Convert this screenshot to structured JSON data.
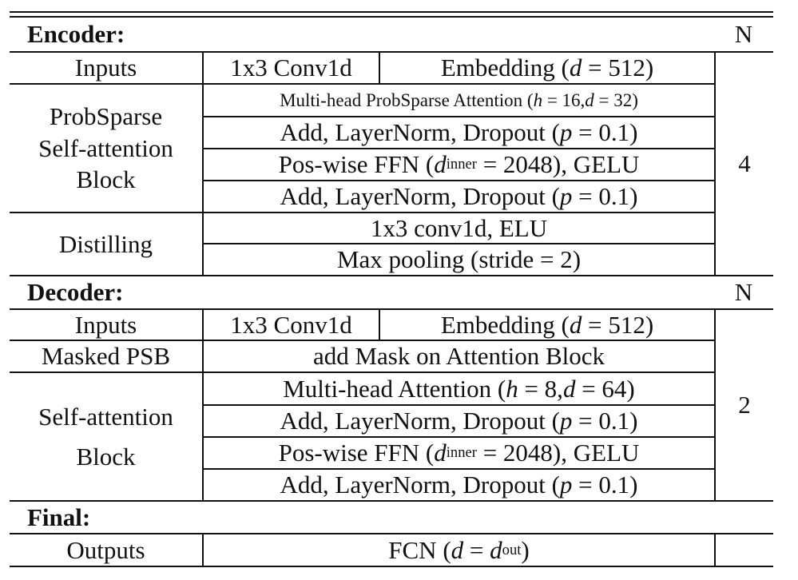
{
  "encoder": {
    "label": "Encoder:",
    "n_header": "N",
    "inputs_label": "Inputs",
    "inputs_conv": "1x3 Conv1d",
    "inputs_embedding": "Embedding (d = 512)",
    "psb_label": [
      "ProbSparse",
      "Self-attention",
      "Block"
    ],
    "psb_rows": [
      "Multi-head ProbSparse Attention (h = 16, d = 32)",
      "Add, LayerNorm, Dropout (p = 0.1)",
      "Pos-wise FFN (d_inner = 2048), GELU",
      "Add, LayerNorm, Dropout (p = 0.1)"
    ],
    "distilling_label": "Distilling",
    "distilling_rows": [
      "1x3 conv1d, ELU",
      "Max pooling (stride = 2)"
    ],
    "n_value": "4"
  },
  "decoder": {
    "label": "Decoder:",
    "n_header": "N",
    "inputs_label": "Inputs",
    "inputs_conv": "1x3 Conv1d",
    "inputs_embedding": "Embedding (d = 512)",
    "masked_label": "Masked PSB",
    "masked_text": "add Mask on Attention Block",
    "sab_label": [
      "Self-attention",
      "Block"
    ],
    "sab_rows": [
      "Multi-head Attention (h = 8, d = 64)",
      "Add, LayerNorm, Dropout (p = 0.1)",
      "Pos-wise FFN (d_inner = 2048), GELU",
      "Add, LayerNorm, Dropout (p = 0.1)"
    ],
    "n_value": "2"
  },
  "final": {
    "label": "Final:",
    "outputs_label": "Outputs",
    "outputs_text": "FCN (d = d_out)"
  }
}
